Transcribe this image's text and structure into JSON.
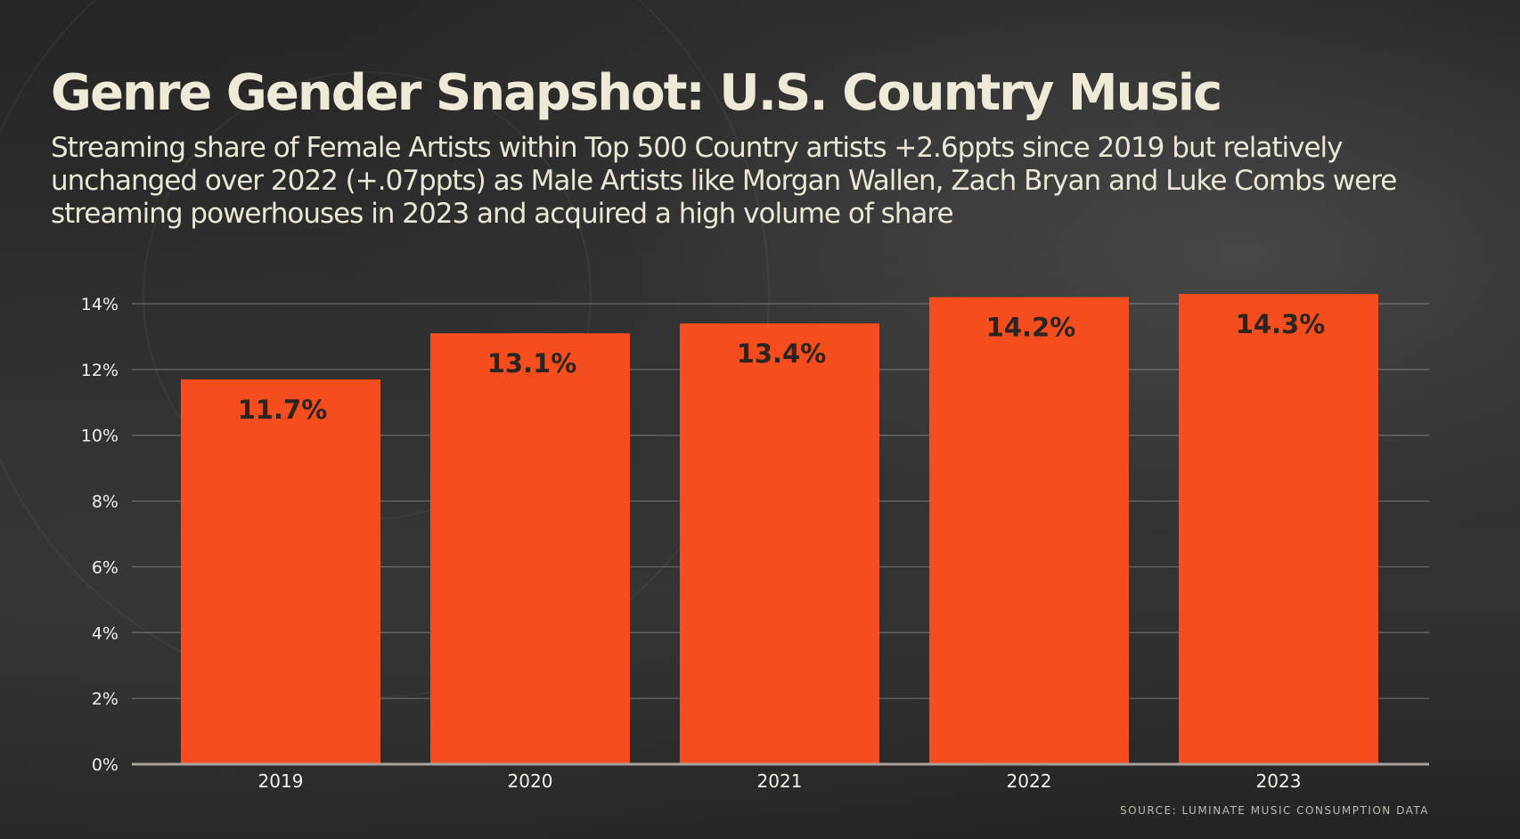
{
  "header": {
    "title": "Genre Gender Snapshot: U.S. Country Music",
    "subtitle": "Streaming share of Female Artists within Top 500 Country artists +2.6ppts since 2019 but relatively unchanged over 2022 (+.07ppts) as Male Artists like Morgan Wallen, Zach Bryan and Luke Combs were streaming powerhouses in 2023 and acquired a high volume of share"
  },
  "source": "SOURCE: LUMINATE MUSIC CONSUMPTION DATA",
  "colors": {
    "bar": "#f64d1e",
    "background": "#2b2b2b",
    "title_text": "#efe9d8",
    "data_label": "#2a2522"
  },
  "chart_data": {
    "type": "bar",
    "categories": [
      "2019",
      "2020",
      "2021",
      "2022",
      "2023"
    ],
    "values": [
      11.7,
      13.1,
      13.4,
      14.2,
      14.3
    ],
    "data_labels": [
      "11.7%",
      "13.1%",
      "13.4%",
      "14.2%",
      "14.3%"
    ],
    "y_ticks": [
      0,
      2,
      4,
      6,
      8,
      10,
      12,
      14
    ],
    "y_tick_labels": [
      "0%",
      "2%",
      "4%",
      "6%",
      "8%",
      "10%",
      "12%",
      "14%"
    ],
    "ylim": [
      0,
      14
    ],
    "grid": true,
    "legend": "none"
  }
}
